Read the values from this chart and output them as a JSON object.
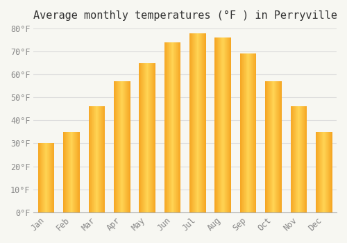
{
  "title": "Average monthly temperatures (°F ) in Perryville",
  "months": [
    "Jan",
    "Feb",
    "Mar",
    "Apr",
    "May",
    "Jun",
    "Jul",
    "Aug",
    "Sep",
    "Oct",
    "Nov",
    "Dec"
  ],
  "values": [
    30,
    35,
    46,
    57,
    65,
    74,
    78,
    76,
    69,
    57,
    46,
    35
  ],
  "bar_color_dark": "#F5A623",
  "bar_color_light": "#FFD454",
  "background_color": "#F7F7F2",
  "grid_color": "#DDDDDD",
  "ylim": [
    0,
    80
  ],
  "yticks": [
    0,
    10,
    20,
    30,
    40,
    50,
    60,
    70,
    80
  ],
  "ytick_labels": [
    "0°F",
    "10°F",
    "20°F",
    "30°F",
    "40°F",
    "50°F",
    "60°F",
    "70°F",
    "80°F"
  ],
  "title_fontsize": 11,
  "tick_fontsize": 8.5,
  "font_family": "monospace",
  "bar_width": 0.65,
  "n_slices": 40
}
